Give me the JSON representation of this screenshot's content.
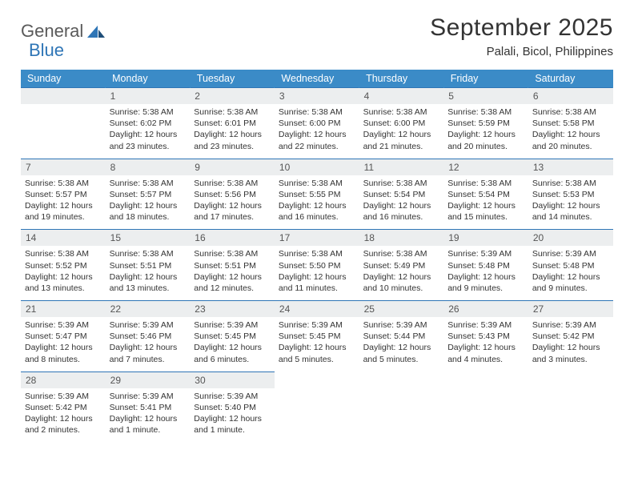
{
  "logo": {
    "part1": "General",
    "part2": "Blue"
  },
  "title": "September 2025",
  "location": "Palali, Bicol, Philippines",
  "colors": {
    "header_bg": "#3b8bc7",
    "header_text": "#ffffff",
    "rule": "#2e75b6",
    "daynum_bg": "#eceeef",
    "daynum_text": "#555555",
    "body_text": "#333333",
    "logo_gray": "#5a5a5a",
    "logo_blue": "#2e75b6"
  },
  "weekday_labels": [
    "Sunday",
    "Monday",
    "Tuesday",
    "Wednesday",
    "Thursday",
    "Friday",
    "Saturday"
  ],
  "weeks": [
    [
      {
        "n": "",
        "sr": "",
        "ss": "",
        "dl": ""
      },
      {
        "n": "1",
        "sr": "Sunrise: 5:38 AM",
        "ss": "Sunset: 6:02 PM",
        "dl": "Daylight: 12 hours and 23 minutes."
      },
      {
        "n": "2",
        "sr": "Sunrise: 5:38 AM",
        "ss": "Sunset: 6:01 PM",
        "dl": "Daylight: 12 hours and 23 minutes."
      },
      {
        "n": "3",
        "sr": "Sunrise: 5:38 AM",
        "ss": "Sunset: 6:00 PM",
        "dl": "Daylight: 12 hours and 22 minutes."
      },
      {
        "n": "4",
        "sr": "Sunrise: 5:38 AM",
        "ss": "Sunset: 6:00 PM",
        "dl": "Daylight: 12 hours and 21 minutes."
      },
      {
        "n": "5",
        "sr": "Sunrise: 5:38 AM",
        "ss": "Sunset: 5:59 PM",
        "dl": "Daylight: 12 hours and 20 minutes."
      },
      {
        "n": "6",
        "sr": "Sunrise: 5:38 AM",
        "ss": "Sunset: 5:58 PM",
        "dl": "Daylight: 12 hours and 20 minutes."
      }
    ],
    [
      {
        "n": "7",
        "sr": "Sunrise: 5:38 AM",
        "ss": "Sunset: 5:57 PM",
        "dl": "Daylight: 12 hours and 19 minutes."
      },
      {
        "n": "8",
        "sr": "Sunrise: 5:38 AM",
        "ss": "Sunset: 5:57 PM",
        "dl": "Daylight: 12 hours and 18 minutes."
      },
      {
        "n": "9",
        "sr": "Sunrise: 5:38 AM",
        "ss": "Sunset: 5:56 PM",
        "dl": "Daylight: 12 hours and 17 minutes."
      },
      {
        "n": "10",
        "sr": "Sunrise: 5:38 AM",
        "ss": "Sunset: 5:55 PM",
        "dl": "Daylight: 12 hours and 16 minutes."
      },
      {
        "n": "11",
        "sr": "Sunrise: 5:38 AM",
        "ss": "Sunset: 5:54 PM",
        "dl": "Daylight: 12 hours and 16 minutes."
      },
      {
        "n": "12",
        "sr": "Sunrise: 5:38 AM",
        "ss": "Sunset: 5:54 PM",
        "dl": "Daylight: 12 hours and 15 minutes."
      },
      {
        "n": "13",
        "sr": "Sunrise: 5:38 AM",
        "ss": "Sunset: 5:53 PM",
        "dl": "Daylight: 12 hours and 14 minutes."
      }
    ],
    [
      {
        "n": "14",
        "sr": "Sunrise: 5:38 AM",
        "ss": "Sunset: 5:52 PM",
        "dl": "Daylight: 12 hours and 13 minutes."
      },
      {
        "n": "15",
        "sr": "Sunrise: 5:38 AM",
        "ss": "Sunset: 5:51 PM",
        "dl": "Daylight: 12 hours and 13 minutes."
      },
      {
        "n": "16",
        "sr": "Sunrise: 5:38 AM",
        "ss": "Sunset: 5:51 PM",
        "dl": "Daylight: 12 hours and 12 minutes."
      },
      {
        "n": "17",
        "sr": "Sunrise: 5:38 AM",
        "ss": "Sunset: 5:50 PM",
        "dl": "Daylight: 12 hours and 11 minutes."
      },
      {
        "n": "18",
        "sr": "Sunrise: 5:38 AM",
        "ss": "Sunset: 5:49 PM",
        "dl": "Daylight: 12 hours and 10 minutes."
      },
      {
        "n": "19",
        "sr": "Sunrise: 5:39 AM",
        "ss": "Sunset: 5:48 PM",
        "dl": "Daylight: 12 hours and 9 minutes."
      },
      {
        "n": "20",
        "sr": "Sunrise: 5:39 AM",
        "ss": "Sunset: 5:48 PM",
        "dl": "Daylight: 12 hours and 9 minutes."
      }
    ],
    [
      {
        "n": "21",
        "sr": "Sunrise: 5:39 AM",
        "ss": "Sunset: 5:47 PM",
        "dl": "Daylight: 12 hours and 8 minutes."
      },
      {
        "n": "22",
        "sr": "Sunrise: 5:39 AM",
        "ss": "Sunset: 5:46 PM",
        "dl": "Daylight: 12 hours and 7 minutes."
      },
      {
        "n": "23",
        "sr": "Sunrise: 5:39 AM",
        "ss": "Sunset: 5:45 PM",
        "dl": "Daylight: 12 hours and 6 minutes."
      },
      {
        "n": "24",
        "sr": "Sunrise: 5:39 AM",
        "ss": "Sunset: 5:45 PM",
        "dl": "Daylight: 12 hours and 5 minutes."
      },
      {
        "n": "25",
        "sr": "Sunrise: 5:39 AM",
        "ss": "Sunset: 5:44 PM",
        "dl": "Daylight: 12 hours and 5 minutes."
      },
      {
        "n": "26",
        "sr": "Sunrise: 5:39 AM",
        "ss": "Sunset: 5:43 PM",
        "dl": "Daylight: 12 hours and 4 minutes."
      },
      {
        "n": "27",
        "sr": "Sunrise: 5:39 AM",
        "ss": "Sunset: 5:42 PM",
        "dl": "Daylight: 12 hours and 3 minutes."
      }
    ],
    [
      {
        "n": "28",
        "sr": "Sunrise: 5:39 AM",
        "ss": "Sunset: 5:42 PM",
        "dl": "Daylight: 12 hours and 2 minutes."
      },
      {
        "n": "29",
        "sr": "Sunrise: 5:39 AM",
        "ss": "Sunset: 5:41 PM",
        "dl": "Daylight: 12 hours and 1 minute."
      },
      {
        "n": "30",
        "sr": "Sunrise: 5:39 AM",
        "ss": "Sunset: 5:40 PM",
        "dl": "Daylight: 12 hours and 1 minute."
      },
      {
        "n": "",
        "sr": "",
        "ss": "",
        "dl": ""
      },
      {
        "n": "",
        "sr": "",
        "ss": "",
        "dl": ""
      },
      {
        "n": "",
        "sr": "",
        "ss": "",
        "dl": ""
      },
      {
        "n": "",
        "sr": "",
        "ss": "",
        "dl": ""
      }
    ]
  ]
}
